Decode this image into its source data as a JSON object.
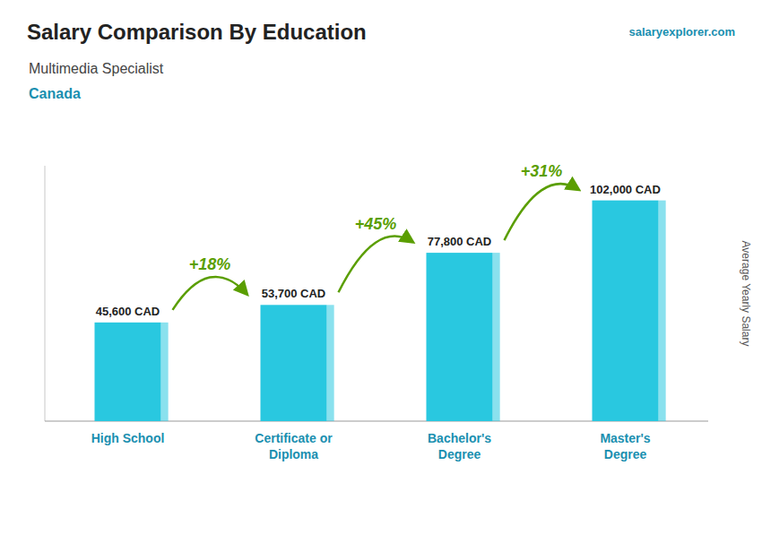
{
  "chart_data": {
    "type": "bar",
    "title": "Salary Comparison By Education",
    "subtitle": "Multimedia Specialist",
    "caption": "Canada",
    "source": "salaryexplorer.com",
    "y_label": "Average Yearly Salary",
    "categories": [
      "High School",
      "Certificate or\nDiploma",
      "Bachelor's\nDegree",
      "Master's\nDegree"
    ],
    "values": [
      45600,
      53700,
      77800,
      102000
    ],
    "value_labels": [
      "45,600 CAD",
      "53,700 CAD",
      "77,800 CAD",
      "102,000 CAD"
    ],
    "annotations": [
      "+18%",
      "+45%",
      "+31%"
    ],
    "color": "#29c8e0",
    "ylim": [
      0,
      118000
    ],
    "grid": false,
    "data_labels": true,
    "tick_labels": "x"
  }
}
